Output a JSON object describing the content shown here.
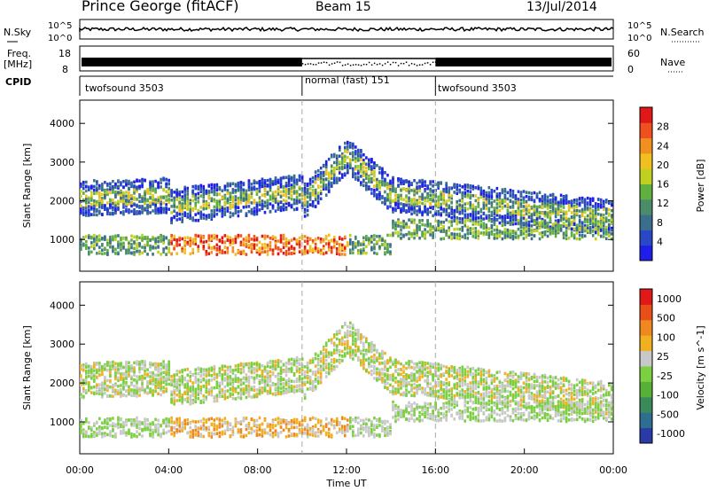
{
  "header": {
    "title": "Prince George (fitACF)",
    "beam": "Beam 15",
    "date": "13/Jul/2014"
  },
  "summary_panels": {
    "nsky_label": "N.Sky",
    "nsky_ticks": [
      "10^5",
      "10^0"
    ],
    "nsearch_label": "N.Search",
    "nsearch_ticks": [
      "10^5",
      "10^0"
    ],
    "freq_label": "Freq.",
    "freq_unit": "[MHz]",
    "freq_ticks": [
      "18",
      "8"
    ],
    "nave_label": "Nave",
    "nave_ticks": [
      "60",
      "0"
    ],
    "cpid_label": "CPID"
  },
  "cpid_segments": [
    {
      "name": "twofsound 3503",
      "start_hour": 0,
      "end_hour": 10
    },
    {
      "name": "normal (fast) 151",
      "start_hour": 10,
      "end_hour": 16
    },
    {
      "name": "twofsound 3503",
      "start_hour": 16,
      "end_hour": 24
    }
  ],
  "chart_data": [
    {
      "type": "heatmap",
      "panel": "power",
      "ylabel": "Slant Range [km]",
      "yticks": [
        1000,
        2000,
        3000,
        4000
      ],
      "ylim": [
        180,
        4600
      ],
      "xlim": [
        0,
        24
      ],
      "colorbar": {
        "label": "Power [dB]",
        "ticks": [
          4,
          8,
          12,
          16,
          20,
          24,
          28
        ],
        "colors": [
          "#1e1ee8",
          "#2848c8",
          "#3a6e8c",
          "#4a8c6a",
          "#60b040",
          "#c0d020",
          "#f0c020",
          "#f09020",
          "#f05020",
          "#e01818"
        ]
      }
    },
    {
      "type": "heatmap",
      "panel": "velocity",
      "ylabel": "Slant Range [km]",
      "xlabel": "Time UT",
      "yticks": [
        1000,
        2000,
        3000,
        4000
      ],
      "ylim": [
        180,
        4600
      ],
      "xlim": [
        0,
        24
      ],
      "xticklabels": [
        "00:00",
        "04:00",
        "08:00",
        "12:00",
        "16:00",
        "20:00",
        "00:00"
      ],
      "colorbar": {
        "label": "Velocity [m s^-1]",
        "ticks": [
          "1000",
          "500",
          "100",
          "25",
          "-25",
          "-100",
          "-500",
          "-1000"
        ],
        "colors": [
          "#2a3aa8",
          "#2e6e8e",
          "#3a8a5a",
          "#58b038",
          "#7ad040",
          "#c8c8c8",
          "#f0b020",
          "#f08820",
          "#e85018",
          "#e01818"
        ]
      }
    }
  ]
}
